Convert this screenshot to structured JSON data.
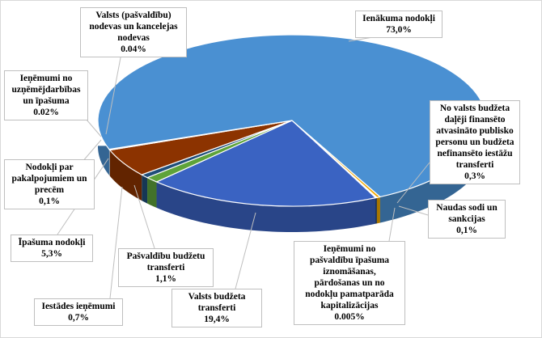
{
  "chart_data": {
    "type": "pie",
    "style": "3d",
    "slices": [
      {
        "name": "No valsts budžeta daļēji finansēto atvasināto publisko personu un budžeta nefinansēto iestāžu transferti",
        "value": 0.3,
        "label_value": "0,3%",
        "color": "#f2a900"
      },
      {
        "name": "Ieņēmumi no pašvaldību īpašuma iznomāšanas, pārdošanas un no nodokļu pamatparāda kapitalizācijas",
        "value": 0.005,
        "label_value": "0.005%",
        "color": "#7a4a10"
      },
      {
        "name": "Naudas sodi un sankcijas",
        "value": 0.1,
        "label_value": "0,1%",
        "color": "#1c3450"
      },
      {
        "name": "Valsts budžeta transferti",
        "value": 19.4,
        "label_value": "19,4%",
        "color": "#3a63c2"
      },
      {
        "name": "Pašvaldību budžetu transferti",
        "value": 1.1,
        "label_value": "1,1%",
        "color": "#5ea33a"
      },
      {
        "name": "Iestādes ieņēmumi",
        "value": 0.7,
        "label_value": "0,7%",
        "color": "#1f4e79"
      },
      {
        "name": "Īpašuma nodokļi",
        "value": 5.3,
        "label_value": "5,3%",
        "color": "#8c3300"
      },
      {
        "name": "Nodokļi par pakalpojumiem un precēm",
        "value": 0.1,
        "label_value": "0,1%",
        "color": "#9dc3e6"
      },
      {
        "name": "Ieņēmumi no uzņēmējdarbības un īpašuma",
        "value": 0.02,
        "label_value": "0.02%",
        "color": "#a5a5a5"
      },
      {
        "name": "Valsts (pašvaldību) nodevas un kancelejas nodevas",
        "value": 0.04,
        "label_value": "0.04%",
        "color": "#5b9bd5"
      },
      {
        "name": "Ienākuma nodokļi",
        "value": 73.0,
        "label_value": "73,0%",
        "color": "#4a90d2"
      }
    ]
  },
  "labels": [
    {
      "lines": [
        "Valsts (pašvaldību)",
        "nodevas un kancelejas",
        "nodevas",
        "0.04%"
      ]
    },
    {
      "lines": [
        "Ienākuma nodokļi",
        "73,0%"
      ]
    },
    {
      "lines": [
        "Ieņēmumi no",
        "uzņēmējdarbības",
        "un īpašuma",
        "0.02%"
      ]
    },
    {
      "lines": [
        "No valsts budžeta",
        "daļēji finansēto",
        "atvasināto publisko",
        "personu un budžeta",
        "nefinansēto iestāžu",
        "transferti",
        "0,3%"
      ]
    },
    {
      "lines": [
        "Nodokļi par",
        "pakalpojumiem un",
        "precēm",
        "0,1%"
      ]
    },
    {
      "lines": [
        "Naudas sodi un",
        "sankcijas",
        "0,1%"
      ]
    },
    {
      "lines": [
        "Īpašuma nodokļi",
        "5,3%"
      ]
    },
    {
      "lines": [
        "Pašvaldību budžetu",
        "transferti",
        "1,1%"
      ]
    },
    {
      "lines": [
        "Ieņēmumi no",
        "pašvaldību īpašuma",
        "iznomāšanas,",
        "pārdošanas un no",
        "nodokļu pamatparāda",
        "kapitalizācijas",
        "0.005%"
      ]
    },
    {
      "lines": [
        "Iestādes ieņēmumi",
        "0,7%"
      ]
    },
    {
      "lines": [
        "Valsts budžeta",
        "transferti",
        "19,4%"
      ]
    }
  ]
}
